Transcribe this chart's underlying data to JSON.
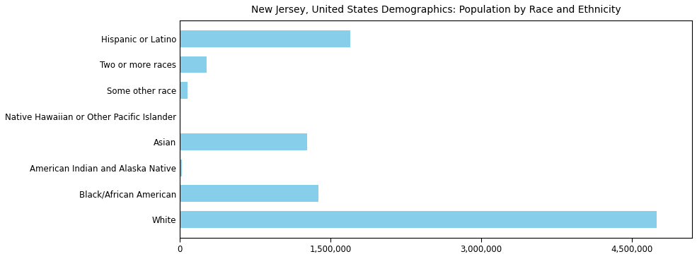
{
  "categories": [
    "White",
    "Black/African American",
    "American Indian and Alaska Native",
    "Asian",
    "Native Hawaiian or Other Pacific Islander",
    "Some other race",
    "Two or more races",
    "Hispanic or Latino"
  ],
  "values": [
    4750000,
    1380000,
    20000,
    1270000,
    10000,
    75000,
    270000,
    1700000
  ],
  "bar_color": "#87CEEB",
  "title": "New Jersey, United States Demographics: Population by Race and Ethnicity",
  "xlim": [
    0,
    5100000
  ],
  "xticks": [
    0,
    1500000,
    3000000,
    4500000
  ],
  "xtick_labels": [
    "0",
    "1,500,000",
    "3,000,000",
    "4,500,000"
  ],
  "title_fontsize": 10,
  "label_fontsize": 8.5,
  "tick_fontsize": 8.5
}
